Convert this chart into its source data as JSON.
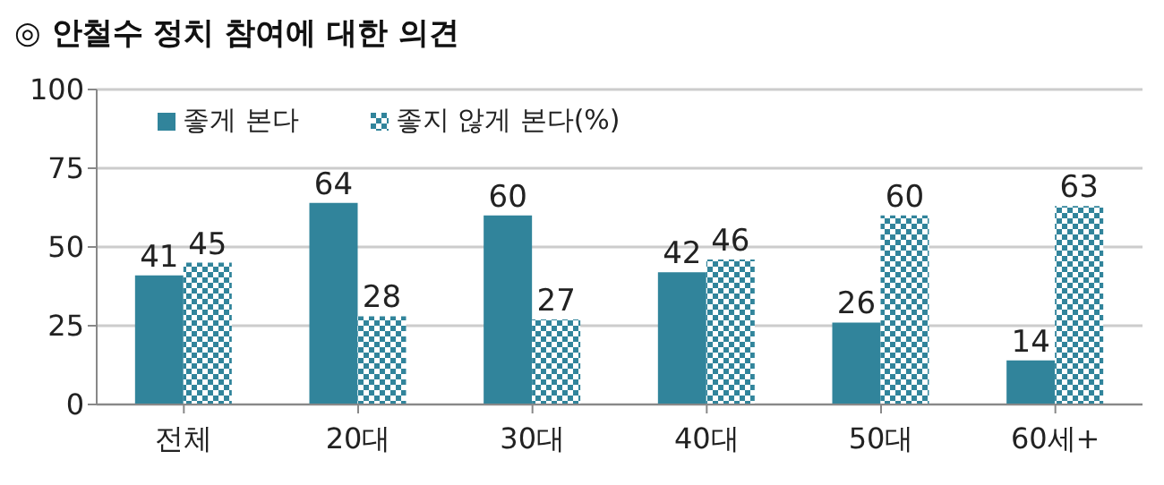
{
  "chart_data": {
    "type": "bar",
    "title": "◎  안철수 정치 참여에 대한 의견",
    "categories": [
      "전체",
      "20대",
      "30대",
      "40대",
      "50대",
      "60세+"
    ],
    "series": [
      {
        "name": "좋게 본다",
        "color": "#31849b",
        "values": [
          41,
          64,
          60,
          42,
          26,
          14
        ]
      },
      {
        "name": "좋지 않게 본다(%)",
        "color": "#31849b",
        "values": [
          45,
          28,
          27,
          46,
          60,
          63
        ]
      }
    ],
    "ylim": [
      0,
      100
    ],
    "yticks": [
      0,
      25,
      50,
      75,
      100
    ],
    "grid": "y",
    "legend": "top left",
    "data_labels": true
  }
}
